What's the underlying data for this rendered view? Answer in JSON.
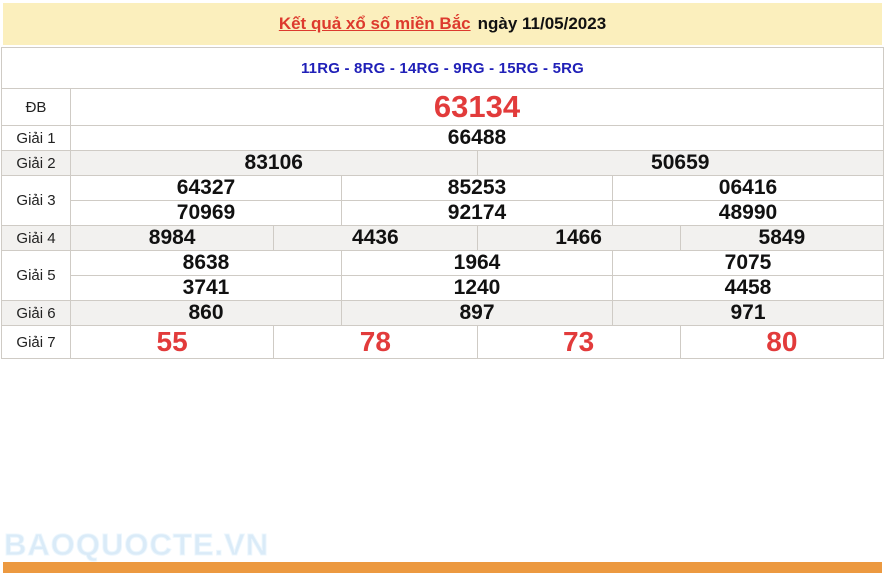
{
  "header": {
    "title_link": "Kết quả xổ số miền Bắc",
    "title_date": "ngày 11/05/2023"
  },
  "subtitle": "11RG - 8RG - 14RG - 9RG - 15RG - 5RG",
  "table": {
    "rows": [
      {
        "label": "ĐB",
        "style": "special",
        "shaded": false,
        "lines": [
          [
            "63134"
          ]
        ]
      },
      {
        "label": "Giải 1",
        "style": "normal",
        "shaded": false,
        "lines": [
          [
            "66488"
          ]
        ]
      },
      {
        "label": "Giải 2",
        "style": "normal",
        "shaded": true,
        "lines": [
          [
            "83106",
            "50659"
          ]
        ]
      },
      {
        "label": "Giải 3",
        "style": "normal",
        "shaded": false,
        "lines": [
          [
            "64327",
            "85253",
            "06416"
          ],
          [
            "70969",
            "92174",
            "48990"
          ]
        ]
      },
      {
        "label": "Giải 4",
        "style": "normal",
        "shaded": true,
        "lines": [
          [
            "8984",
            "4436",
            "1466",
            "5849"
          ]
        ]
      },
      {
        "label": "Giải 5",
        "style": "normal",
        "shaded": false,
        "lines": [
          [
            "8638",
            "1964",
            "7075"
          ],
          [
            "3741",
            "1240",
            "4458"
          ]
        ]
      },
      {
        "label": "Giải 6",
        "style": "normal",
        "shaded": true,
        "lines": [
          [
            "860",
            "897",
            "971"
          ]
        ]
      },
      {
        "label": "Giải 7",
        "style": "red",
        "shaded": false,
        "lines": [
          [
            "55",
            "78",
            "73",
            "80"
          ]
        ]
      }
    ]
  },
  "watermark": "BAOQUOCTE.VN",
  "colors": {
    "banner_bg": "#fbefbd",
    "title_red": "#dd3a2e",
    "subtitle_blue": "#2020b8",
    "number_red": "#e23b3b",
    "shaded_row_bg": "#f2f1ef",
    "border": "#cfcbc5",
    "footer_orange": "#ec9940"
  }
}
